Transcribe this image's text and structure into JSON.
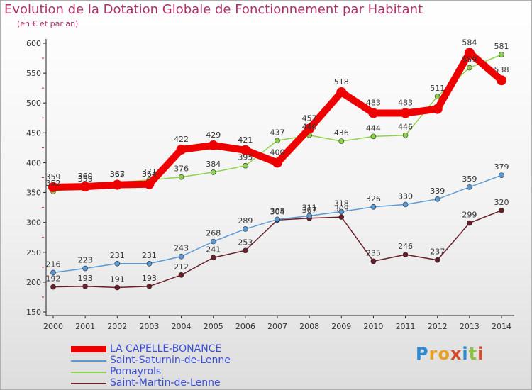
{
  "title": "Evolution de la Dotation Globale de Fonctionnement par Habitant",
  "subtitle": "(en € et par an)",
  "colors": {
    "title": "#b0306a",
    "legend_text": "#3a4fd8",
    "axis_text": "#333333"
  },
  "chart_data": {
    "type": "line",
    "title": "Evolution de la Dotation Globale de Fonctionnement par Habitant",
    "subtitle": "(en € et par an)",
    "xlabel": "",
    "ylabel": "",
    "x": [
      "2000",
      "2001",
      "2002",
      "2003",
      "2004",
      "2005",
      "2006",
      "2007",
      "2008",
      "2009",
      "2010",
      "2011",
      "2012",
      "2013",
      "2014"
    ],
    "ylim": [
      150,
      600
    ],
    "yticks": [
      150,
      200,
      250,
      300,
      350,
      400,
      450,
      500,
      550,
      600
    ],
    "grid": false,
    "legend_position": "bottom-left",
    "series": [
      {
        "name": "LA CAPELLE-BONANCE",
        "color": "#ee0000",
        "values": [
          359,
          360,
          363,
          364,
          422,
          429,
          421,
          400,
          457,
          518,
          483,
          483,
          490,
          584,
          538
        ],
        "labels": [
          "359",
          "360",
          "363",
          "364",
          "422",
          "429",
          "421",
          "400",
          "457",
          "518",
          "483",
          "483",
          "",
          "584",
          "538"
        ]
      },
      {
        "name": "Saint-Saturnin-de-Lenne",
        "color": "#5b9bd5",
        "values": [
          216,
          223,
          231,
          231,
          243,
          268,
          289,
          305,
          311,
          318,
          326,
          330,
          339,
          359,
          379
        ],
        "labels": [
          "216",
          "223",
          "231",
          "231",
          "243",
          "268",
          "289",
          "305",
          "311",
          "318",
          "326",
          "330",
          "339",
          "359",
          "379"
        ]
      },
      {
        "name": "Pomayrols",
        "color": "#8ed44b",
        "values": [
          352,
          359,
          367,
          371,
          376,
          384,
          395,
          437,
          446,
          436,
          444,
          446,
          511,
          559,
          581
        ],
        "labels": [
          "352",
          "359",
          "367",
          "371",
          "376",
          "384",
          "395",
          "437",
          "446",
          "436",
          "444",
          "446",
          "511",
          "559",
          "581"
        ]
      },
      {
        "name": "Saint-Martin-de-Lenne",
        "color": "#6b1f2a",
        "values": [
          192,
          193,
          191,
          193,
          212,
          241,
          253,
          304,
          307,
          309,
          235,
          246,
          237,
          299,
          320
        ],
        "labels": [
          "192",
          "193",
          "191",
          "193",
          "212",
          "241",
          "253",
          "304",
          "307",
          "309",
          "235",
          "246",
          "237",
          "299",
          "320"
        ]
      }
    ]
  },
  "legend": {
    "items": [
      {
        "label": "LA CAPELLE-BONANCE"
      },
      {
        "label": "Saint-Saturnin-de-Lenne"
      },
      {
        "label": "Pomayrols"
      },
      {
        "label": "Saint-Martin-de-Lenne"
      }
    ]
  },
  "logo": {
    "letters": [
      "P",
      "r",
      "o",
      "x",
      "i",
      "t",
      "i"
    ],
    "colors": [
      "#2a8ad6",
      "#e8a020",
      "#e8a020",
      "#d64a2a",
      "#2a8ad6",
      "#8ac040",
      "#d64a2a"
    ]
  }
}
